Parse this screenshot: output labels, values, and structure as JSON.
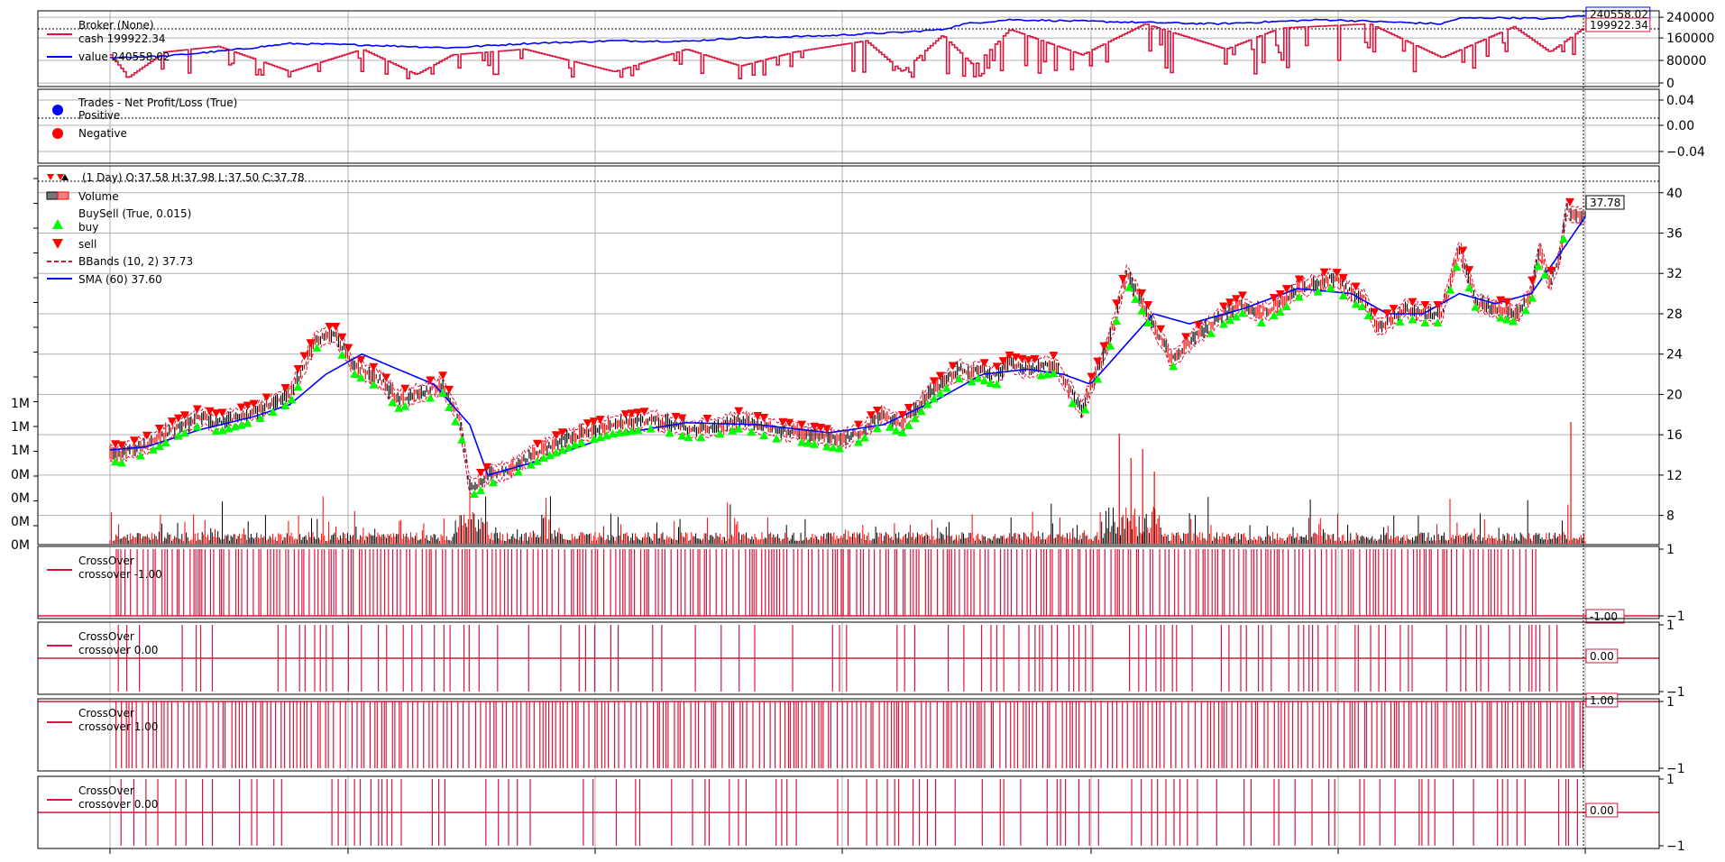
{
  "colors": {
    "crimson": "#dc143c",
    "blue": "#0000ff",
    "red": "#ff0000",
    "green": "#00ff00",
    "black": "#000000",
    "grid": "#b0b0b0",
    "axis": "#000000"
  },
  "chart_data": [
    {
      "type": "line",
      "panel": "broker",
      "legend": {
        "title": "Broker (None)",
        "entries": [
          {
            "label": "cash 199922.34",
            "color": "#dc143c"
          },
          {
            "label": "value 240558.02",
            "color": "#0000ff"
          }
        ]
      },
      "y_ticks": [
        "240000",
        "160000",
        "80000",
        "0"
      ],
      "ylim": [
        0,
        250000
      ],
      "last_value_tags": [
        "240558.02",
        "199922.34"
      ],
      "series": [
        {
          "name": "value",
          "color": "#0000ff",
          "x": [
            0,
            60,
            130,
            200,
            280,
            380,
            460,
            560,
            640,
            700,
            760,
            800,
            840,
            880,
            925,
            950,
            1000,
            1150,
            1230,
            1350,
            1480,
            1500,
            1550,
            1600,
            1640
          ],
          "y": [
            90000,
            95000,
            115000,
            140000,
            135000,
            125000,
            140000,
            150000,
            148000,
            160000,
            165000,
            168000,
            175000,
            180000,
            190000,
            210000,
            225000,
            215000,
            210000,
            225000,
            210000,
            230000,
            232000,
            228000,
            240558
          ]
        },
        {
          "name": "cash",
          "color": "#dc143c",
          "x": [
            0,
            20,
            60,
            120,
            200,
            280,
            340,
            380,
            460,
            560,
            640,
            700,
            760,
            840,
            880,
            925,
            960,
            1000,
            1080,
            1150,
            1240,
            1300,
            1400,
            1480,
            1560,
            1600,
            1640
          ],
          "y": [
            100000,
            20000,
            110000,
            130000,
            40000,
            120000,
            30000,
            100000,
            120000,
            40000,
            120000,
            60000,
            110000,
            150000,
            40000,
            170000,
            60000,
            190000,
            100000,
            210000,
            120000,
            195000,
            210000,
            90000,
            200000,
            110000,
            199922
          ]
        }
      ],
      "x_range": [
        0,
        1640
      ]
    },
    {
      "type": "scatter",
      "panel": "trades",
      "legend": {
        "title": "Trades - Net Profit/Loss (True)",
        "entries": [
          {
            "label": "Positive",
            "color": "#0000ff"
          },
          {
            "label": "Negative",
            "color": "#ff0000"
          }
        ]
      },
      "y_ticks": [
        "0.04",
        "0.00",
        "−0.04"
      ],
      "ylim": [
        -0.06,
        0.06
      ]
    },
    {
      "type": "line",
      "panel": "price",
      "legend": {
        "title": "(1 Day) O:37.58 H:37.98 L:37.50 C:37.78",
        "entries": [
          {
            "label": "Volume",
            "kind": "bar"
          },
          {
            "label": "BuySell (True, 0.015)",
            "kind": "none"
          },
          {
            "label": "buy",
            "kind": "up-triangle",
            "color": "#00ff00"
          },
          {
            "label": "sell",
            "kind": "down-triangle",
            "color": "#ff0000"
          },
          {
            "label": "BBands (10, 2) 37.73",
            "kind": "dash",
            "color": "#dc143c"
          },
          {
            "label": "SMA (60) 37.60",
            "kind": "line",
            "color": "#0000ff"
          }
        ]
      },
      "y_ticks": [
        "40",
        "36",
        "32",
        "28",
        "24",
        "20",
        "16",
        "12",
        "8"
      ],
      "ylim": [
        6,
        41.5
      ],
      "volume_ticks": [
        "1M",
        "1M",
        "1M",
        "0M",
        "0M",
        "0M",
        "0M"
      ],
      "volume_max": 1600000,
      "last_value_tag": "37.78",
      "x_range": [
        0,
        1640
      ],
      "close": {
        "x": [
          0,
          10,
          40,
          70,
          100,
          120,
          160,
          200,
          230,
          250,
          270,
          300,
          320,
          340,
          370,
          390,
          400,
          410,
          420,
          440,
          480,
          520,
          560,
          600,
          650,
          680,
          700,
          740,
          780,
          810,
          830,
          860,
          880,
          910,
          930,
          945,
          955,
          965,
          985,
          1000,
          1020,
          1050,
          1080,
          1110,
          1130,
          1160,
          1180,
          1210,
          1240,
          1260,
          1280,
          1300,
          1320,
          1340,
          1360,
          1380,
          1395,
          1410,
          1440,
          1460,
          1480,
          1500,
          1520,
          1545,
          1565,
          1580,
          1590,
          1600,
          1610,
          1620,
          1630,
          1640
        ],
        "y": [
          14.5,
          14.0,
          15.0,
          16.5,
          17.8,
          17.2,
          18.2,
          20.0,
          25.5,
          26.0,
          23.0,
          21.5,
          19.5,
          20.0,
          21.0,
          17.0,
          10.8,
          11.2,
          12.0,
          12.5,
          14.5,
          16.0,
          17.0,
          17.5,
          16.5,
          17.0,
          17.5,
          16.5,
          16.0,
          15.5,
          16.0,
          18.0,
          17.0,
          20.0,
          21.5,
          22.5,
          22.0,
          22.5,
          21.8,
          23.0,
          22.5,
          23.0,
          18.5,
          25.0,
          32.0,
          27.0,
          23.5,
          26.0,
          28.0,
          29.0,
          28.0,
          29.0,
          30.5,
          31.0,
          31.5,
          30.0,
          29.5,
          26.5,
          28.5,
          28.0,
          28.0,
          34.5,
          29.0,
          28.5,
          28.0,
          30.0,
          34.5,
          31.0,
          33.0,
          38.5,
          37.5,
          37.78
        ]
      },
      "sma": {
        "x": [
          0,
          40,
          100,
          160,
          200,
          240,
          280,
          320,
          360,
          400,
          420,
          480,
          560,
          640,
          720,
          800,
          860,
          920,
          970,
          1020,
          1060,
          1090,
          1120,
          1160,
          1200,
          1260,
          1320,
          1380,
          1420,
          1460,
          1500,
          1540,
          1580,
          1620,
          1640
        ],
        "y": [
          14.5,
          14.8,
          16.5,
          17.8,
          19.0,
          22.0,
          24.0,
          22.5,
          21.0,
          17.0,
          12.0,
          13.5,
          16.0,
          17.2,
          17.0,
          16.2,
          17.0,
          19.5,
          22.0,
          22.5,
          22.0,
          21.0,
          24.0,
          28.0,
          27.0,
          28.5,
          30.5,
          30.0,
          28.0,
          28.0,
          30.0,
          29.0,
          30.0,
          35.0,
          37.6
        ]
      }
    },
    {
      "type": "line",
      "panel": "crossover-1",
      "legend": {
        "title": "CrossOver",
        "entries": [
          {
            "label": "crossover -1.00",
            "color": "#dc143c"
          }
        ]
      },
      "y_ticks": [
        "1",
        "−1"
      ],
      "ylim": [
        -1,
        1
      ],
      "baseline": -1,
      "last_value_tag": "-1.00",
      "x_range": [
        0,
        1640
      ],
      "spike_count": 340
    },
    {
      "type": "line",
      "panel": "crossover-2",
      "legend": {
        "title": "CrossOver",
        "entries": [
          {
            "label": "crossover 0.00",
            "color": "#dc143c"
          }
        ]
      },
      "y_ticks": [
        "1",
        "−1"
      ],
      "ylim": [
        -1,
        1
      ],
      "baseline": 0,
      "last_value_tag": "0.00",
      "x_range": [
        0,
        1640
      ],
      "spike_count": 220
    },
    {
      "type": "line",
      "panel": "crossover-3",
      "legend": {
        "title": "CrossOver",
        "entries": [
          {
            "label": "crossover 1.00",
            "color": "#dc143c"
          }
        ]
      },
      "y_ticks": [
        "1",
        "−1"
      ],
      "ylim": [
        -1,
        1
      ],
      "baseline": 1,
      "last_value_tag": "1.00",
      "x_range": [
        0,
        1640
      ],
      "spike_count": 340
    },
    {
      "type": "line",
      "panel": "crossover-4",
      "legend": {
        "title": "CrossOver",
        "entries": [
          {
            "label": "crossover 0.00",
            "color": "#dc143c"
          }
        ]
      },
      "y_ticks": [
        "1",
        "−1"
      ],
      "ylim": [
        -1,
        1
      ],
      "baseline": 0,
      "last_value_tag": "0.00",
      "x_range": [
        0,
        1640
      ],
      "spike_count": 220
    }
  ]
}
